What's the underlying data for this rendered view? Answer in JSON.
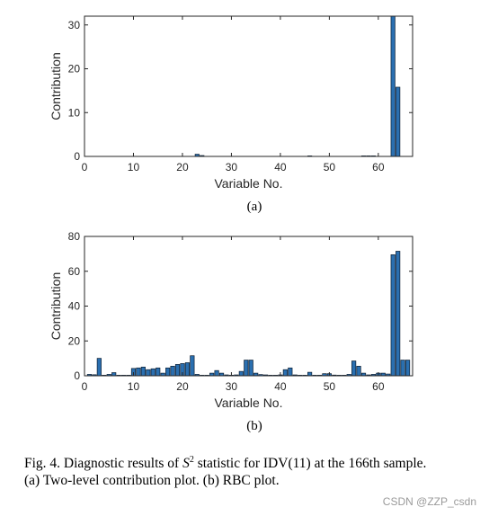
{
  "colors": {
    "bar": "#2a6fb0",
    "bar_edge": "#0d1f33",
    "axis": "#262626",
    "watermark": "#9a9a9a"
  },
  "chart_data": [
    {
      "type": "bar",
      "xlabel": "Variable No.",
      "ylabel": "Contribution",
      "xlim": [
        0,
        67
      ],
      "ylim": [
        0,
        32
      ],
      "xticks": [
        "0",
        "10",
        "20",
        "30",
        "40",
        "50",
        "60"
      ],
      "yticks": [
        "0",
        "10",
        "20",
        "30"
      ],
      "grid": false,
      "x": [
        23,
        24,
        46,
        57,
        58,
        59,
        63,
        64
      ],
      "values": [
        0.5,
        0.2,
        0.1,
        0.1,
        0.1,
        0.1,
        32,
        15.8
      ]
    },
    {
      "type": "bar",
      "xlabel": "Variable No.",
      "ylabel": "Contribution",
      "xlim": [
        0,
        67
      ],
      "ylim": [
        0,
        80
      ],
      "xticks": [
        "0",
        "10",
        "20",
        "30",
        "40",
        "50",
        "60"
      ],
      "yticks": [
        "0",
        "20",
        "40",
        "60",
        "80"
      ],
      "grid": false,
      "x": [
        1,
        2,
        3,
        4,
        5,
        6,
        7,
        8,
        9,
        10,
        11,
        12,
        13,
        14,
        15,
        16,
        17,
        18,
        19,
        20,
        21,
        22,
        23,
        24,
        25,
        26,
        27,
        28,
        29,
        30,
        31,
        32,
        33,
        34,
        35,
        36,
        37,
        38,
        39,
        40,
        41,
        42,
        43,
        44,
        45,
        46,
        47,
        48,
        49,
        50,
        51,
        52,
        53,
        54,
        55,
        56,
        57,
        58,
        59,
        60,
        61,
        62,
        63,
        64,
        65,
        66
      ],
      "values": [
        0.8,
        0.6,
        10,
        0.3,
        0.8,
        1.8,
        0.2,
        0.2,
        0.3,
        4.2,
        4.5,
        5,
        3.5,
        4,
        4.5,
        1.5,
        4.5,
        5.5,
        6.5,
        7,
        7.5,
        11.5,
        0.8,
        0.3,
        0.2,
        1.5,
        3,
        1.5,
        0.5,
        0.3,
        0.5,
        2.5,
        9,
        9,
        1.5,
        0.7,
        0.5,
        0.3,
        0.2,
        0.5,
        3.5,
        4.5,
        0.5,
        0.3,
        0.2,
        2,
        0.3,
        0.2,
        1.2,
        1.2,
        0.4,
        0.3,
        0.3,
        0.8,
        8.5,
        5.5,
        1.5,
        0.5,
        0.8,
        1.5,
        1.5,
        1,
        69.5,
        71.5,
        9,
        9
      ]
    }
  ],
  "sublabels": {
    "a": "(a)",
    "b": "(b)"
  },
  "caption": {
    "prefix": "Fig. 4.   Diagnostic results of ",
    "var": "S",
    "sup": "2",
    "suffix": " statistic for IDV(11) at the 166th sample.",
    "line2": "(a) Two-level contribution plot. (b) RBC plot."
  },
  "watermark": "CSDN @ZZP_csdn"
}
